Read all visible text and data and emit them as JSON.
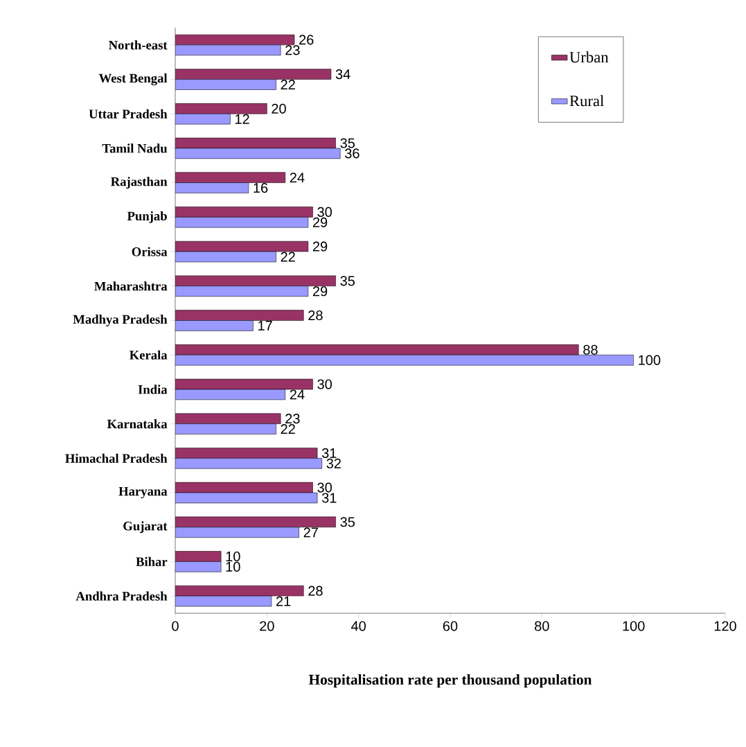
{
  "chart_data": {
    "type": "bar",
    "orientation": "horizontal",
    "xlabel": "Hospitalisation rate per thousand population",
    "categories": [
      "North-east",
      "West Bengal",
      "Uttar Pradesh",
      "Tamil Nadu",
      "Rajasthan",
      "Punjab",
      "Orissa",
      "Maharashtra",
      "Madhya Pradesh",
      "Kerala",
      "India",
      "Karnataka",
      "Himachal Pradesh",
      "Haryana",
      "Gujarat",
      "Bihar",
      "Andhra Pradesh"
    ],
    "series": [
      {
        "name": "Urban",
        "color": "#993366",
        "values": [
          26,
          34,
          20,
          35,
          24,
          30,
          29,
          35,
          28,
          88,
          30,
          23,
          31,
          30,
          35,
          10,
          28
        ]
      },
      {
        "name": "Rural",
        "color": "#9999ff",
        "values": [
          23,
          22,
          12,
          36,
          16,
          29,
          22,
          29,
          17,
          100,
          24,
          22,
          32,
          31,
          27,
          10,
          21
        ]
      }
    ],
    "xlim": [
      0,
      120
    ],
    "xticks": [
      0,
      20,
      40,
      60,
      80,
      100,
      120
    ],
    "data_labels": true,
    "legend": "top right",
    "grid": false
  }
}
